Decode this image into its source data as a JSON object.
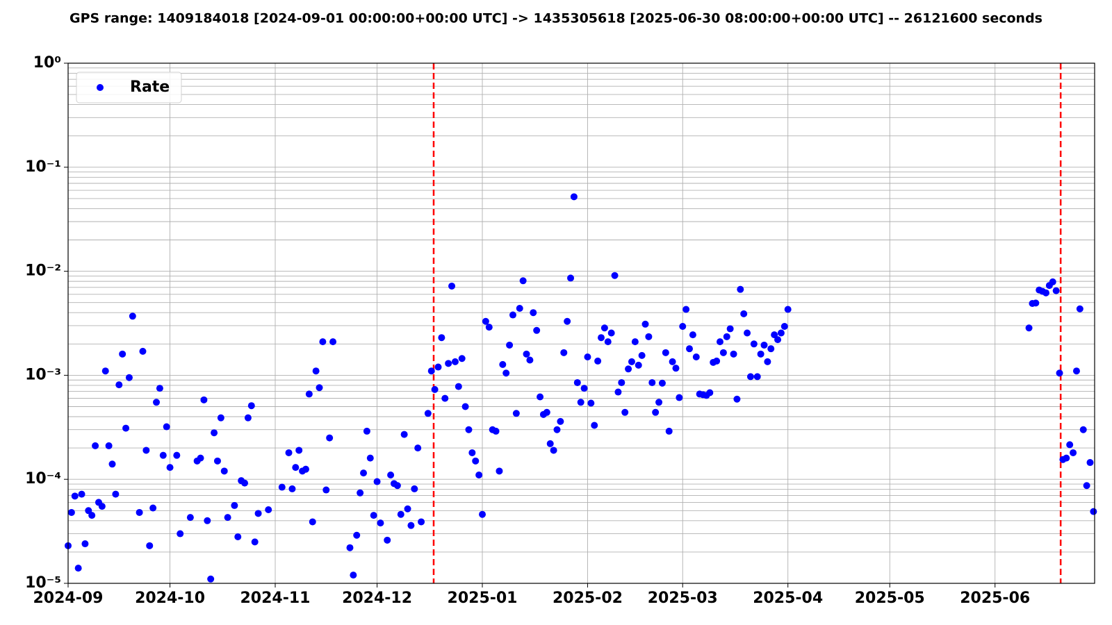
{
  "chart_data": {
    "type": "scatter",
    "title": "GPS range: 1409184018 [2024-09-01 00:00:00+00:00 UTC] -> 1435305618 [2025-06-30 08:00:00+00:00 UTC] -- 26121600 seconds",
    "x": [
      "2024-09-01",
      "2024-09-02",
      "2024-09-03",
      "2024-09-04",
      "2024-09-05",
      "2024-09-06",
      "2024-09-07",
      "2024-09-08",
      "2024-09-09",
      "2024-09-10",
      "2024-09-11",
      "2024-09-12",
      "2024-09-13",
      "2024-09-14",
      "2024-09-15",
      "2024-09-16",
      "2024-09-17",
      "2024-09-18",
      "2024-09-19",
      "2024-09-20",
      "2024-09-22",
      "2024-09-23",
      "2024-09-24",
      "2024-09-25",
      "2024-09-26",
      "2024-09-27",
      "2024-09-28",
      "2024-09-29",
      "2024-09-30",
      "2024-10-01",
      "2024-10-03",
      "2024-10-04",
      "2024-10-07",
      "2024-10-09",
      "2024-10-10",
      "2024-10-11",
      "2024-10-12",
      "2024-10-13",
      "2024-10-14",
      "2024-10-15",
      "2024-10-16",
      "2024-10-17",
      "2024-10-18",
      "2024-10-20",
      "2024-10-21",
      "2024-10-22",
      "2024-10-23",
      "2024-10-24",
      "2024-10-25",
      "2024-10-26",
      "2024-10-27",
      "2024-10-30",
      "2024-11-03",
      "2024-11-05",
      "2024-11-06",
      "2024-11-07",
      "2024-11-08",
      "2024-11-09",
      "2024-11-10",
      "2024-11-11",
      "2024-11-12",
      "2024-11-13",
      "2024-11-14",
      "2024-11-15",
      "2024-11-16",
      "2024-11-17",
      "2024-11-18",
      "2024-11-23",
      "2024-11-24",
      "2024-11-25",
      "2024-11-26",
      "2024-11-27",
      "2024-11-28",
      "2024-11-29",
      "2024-11-30",
      "2024-12-01",
      "2024-12-02",
      "2024-12-04",
      "2024-12-05",
      "2024-12-06",
      "2024-12-07",
      "2024-12-08",
      "2024-12-09",
      "2024-12-10",
      "2024-12-11",
      "2024-12-12",
      "2024-12-13",
      "2024-12-14",
      "2024-12-16",
      "2024-12-17",
      "2024-12-18",
      "2024-12-19",
      "2024-12-20",
      "2024-12-21",
      "2024-12-22",
      "2024-12-23",
      "2024-12-24",
      "2024-12-25",
      "2024-12-26",
      "2024-12-27",
      "2024-12-28",
      "2024-12-29",
      "2024-12-30",
      "2024-12-31",
      "2025-01-01",
      "2025-01-02",
      "2025-01-03",
      "2025-01-04",
      "2025-01-05",
      "2025-01-06",
      "2025-01-07",
      "2025-01-08",
      "2025-01-09",
      "2025-01-10",
      "2025-01-11",
      "2025-01-12",
      "2025-01-13",
      "2025-01-14",
      "2025-01-15",
      "2025-01-16",
      "2025-01-17",
      "2025-01-18",
      "2025-01-19",
      "2025-01-20",
      "2025-01-21",
      "2025-01-22",
      "2025-01-23",
      "2025-01-24",
      "2025-01-25",
      "2025-01-26",
      "2025-01-27",
      "2025-01-28",
      "2025-01-29",
      "2025-01-30",
      "2025-01-31",
      "2025-02-01",
      "2025-02-02",
      "2025-02-03",
      "2025-02-04",
      "2025-02-05",
      "2025-02-06",
      "2025-02-07",
      "2025-02-08",
      "2025-02-09",
      "2025-02-10",
      "2025-02-11",
      "2025-02-12",
      "2025-02-13",
      "2025-02-14",
      "2025-02-15",
      "2025-02-16",
      "2025-02-17",
      "2025-02-18",
      "2025-02-19",
      "2025-02-20",
      "2025-02-21",
      "2025-02-22",
      "2025-02-23",
      "2025-02-24",
      "2025-02-25",
      "2025-02-26",
      "2025-02-27",
      "2025-02-28",
      "2025-03-01",
      "2025-03-02",
      "2025-03-03",
      "2025-03-04",
      "2025-03-05",
      "2025-03-06",
      "2025-03-07",
      "2025-03-08",
      "2025-03-09",
      "2025-03-10",
      "2025-03-11",
      "2025-03-12",
      "2025-03-13",
      "2025-03-14",
      "2025-03-15",
      "2025-03-16",
      "2025-03-17",
      "2025-03-18",
      "2025-03-19",
      "2025-03-20",
      "2025-03-21",
      "2025-03-22",
      "2025-03-23",
      "2025-03-24",
      "2025-03-25",
      "2025-03-26",
      "2025-03-27",
      "2025-03-28",
      "2025-03-29",
      "2025-03-30",
      "2025-03-31",
      "2025-04-01",
      "2025-06-11",
      "2025-06-12",
      "2025-06-13",
      "2025-06-14",
      "2025-06-15",
      "2025-06-16",
      "2025-06-17",
      "2025-06-18",
      "2025-06-19",
      "2025-06-20",
      "2025-06-21",
      "2025-06-22",
      "2025-06-23",
      "2025-06-24",
      "2025-06-25",
      "2025-06-26",
      "2025-06-27",
      "2025-06-28",
      "2025-06-29",
      "2025-06-30"
    ],
    "series": [
      {
        "name": "Rate",
        "color": "#0000ff",
        "values": [
          2.3e-05,
          4.8e-05,
          6.9e-05,
          1.4e-05,
          7.2e-05,
          2.4e-05,
          5e-05,
          4.5e-05,
          0.00021,
          6e-05,
          5.5e-05,
          0.0011,
          0.00021,
          0.00014,
          7.2e-05,
          0.00081,
          0.0016,
          0.00031,
          0.00095,
          0.0037,
          4.8e-05,
          0.0017,
          0.00019,
          2.3e-05,
          5.3e-05,
          0.00055,
          0.00075,
          0.00017,
          0.00032,
          0.00013,
          0.00017,
          3e-05,
          4.3e-05,
          0.00015,
          0.00016,
          0.00058,
          4e-05,
          1.1e-05,
          0.00028,
          0.00015,
          0.00039,
          0.00012,
          4.3e-05,
          5.6e-05,
          2.8e-05,
          9.7e-05,
          9.2e-05,
          0.00039,
          0.00051,
          2.5e-05,
          4.7e-05,
          5.1e-05,
          8.4e-05,
          0.00018,
          8.1e-05,
          0.00013,
          0.00019,
          0.00012,
          0.000125,
          0.00066,
          3.9e-05,
          0.0011,
          0.00076,
          0.0021,
          7.9e-05,
          0.00025,
          0.0021,
          2.2e-05,
          1.2e-05,
          2.9e-05,
          7.4e-05,
          0.000115,
          0.00029,
          0.00016,
          4.5e-05,
          9.5e-05,
          3.8e-05,
          2.6e-05,
          0.00011,
          9.1e-05,
          8.7e-05,
          4.6e-05,
          0.00027,
          5.2e-05,
          3.6e-05,
          8.1e-05,
          0.0002,
          3.9e-05,
          0.00043,
          0.0011,
          0.00073,
          0.0012,
          0.0023,
          0.0006,
          0.0013,
          0.0072,
          0.00135,
          0.00078,
          0.00145,
          0.0005,
          0.0003,
          0.00018,
          0.00015,
          0.00011,
          4.6e-05,
          0.0033,
          0.0029,
          0.0003,
          0.00029,
          0.00012,
          0.00127,
          0.00105,
          0.00195,
          0.0038,
          0.00043,
          0.0044,
          0.0081,
          0.0016,
          0.0014,
          0.004,
          0.0027,
          0.00062,
          0.00042,
          0.00044,
          0.00022,
          0.00019,
          0.0003,
          0.00036,
          0.00165,
          0.0033,
          0.0086,
          0.052,
          0.00085,
          0.00055,
          0.00075,
          0.0015,
          0.00054,
          0.00033,
          0.00137,
          0.0023,
          0.00285,
          0.0021,
          0.00255,
          0.0091,
          0.00069,
          0.00085,
          0.00044,
          0.00115,
          0.00135,
          0.0021,
          0.00125,
          0.00155,
          0.0031,
          0.00235,
          0.00085,
          0.00044,
          0.00055,
          0.00084,
          0.00165,
          0.00029,
          0.00135,
          0.00117,
          0.00061,
          0.00295,
          0.0043,
          0.0018,
          0.00245,
          0.0015,
          0.00066,
          0.00065,
          0.00064,
          0.00068,
          0.00133,
          0.00137,
          0.0021,
          0.00165,
          0.00235,
          0.0028,
          0.0016,
          0.00059,
          0.0067,
          0.0039,
          0.00255,
          0.00097,
          0.002,
          0.00097,
          0.0016,
          0.00195,
          0.00135,
          0.0018,
          0.00245,
          0.0022,
          0.00255,
          0.00295,
          0.0043,
          0.00285,
          0.0049,
          0.00495,
          0.0066,
          0.0064,
          0.0062,
          0.0073,
          0.0079,
          0.0065,
          0.00105,
          0.000155,
          0.00016,
          0.000215,
          0.00018,
          0.0011,
          0.00435,
          0.0003,
          8.7e-05,
          0.000145,
          4.9e-05
        ]
      }
    ],
    "xlim": [
      "2024-09-01 00:00:00",
      "2025-06-30 08:00:00"
    ],
    "xticks": [
      {
        "value": "2024-09-01",
        "label": "2024-09"
      },
      {
        "value": "2024-10-01",
        "label": "2024-10"
      },
      {
        "value": "2024-11-01",
        "label": "2024-11"
      },
      {
        "value": "2024-12-01",
        "label": "2024-12"
      },
      {
        "value": "2025-01-01",
        "label": "2025-01"
      },
      {
        "value": "2025-02-01",
        "label": "2025-02"
      },
      {
        "value": "2025-03-01",
        "label": "2025-03"
      },
      {
        "value": "2025-04-01",
        "label": "2025-04"
      },
      {
        "value": "2025-05-01",
        "label": "2025-05"
      },
      {
        "value": "2025-06-01",
        "label": "2025-06"
      }
    ],
    "ylim": [
      1e-05,
      1
    ],
    "yticks": [
      {
        "value": 1e-05,
        "label": "10⁻⁵"
      },
      {
        "value": 0.0001,
        "label": "10⁻⁴"
      },
      {
        "value": 0.001,
        "label": "10⁻³"
      },
      {
        "value": 0.01,
        "label": "10⁻²"
      },
      {
        "value": 0.1,
        "label": "10⁻¹"
      },
      {
        "value": 1,
        "label": "10⁰"
      }
    ],
    "log_y": true,
    "grid": true,
    "minor_grid": true,
    "legend": "upper left",
    "vlines": [
      "2024-12-17 16:00:00",
      "2025-06-20 08:00:00"
    ],
    "vline_color": "#ff0000"
  }
}
